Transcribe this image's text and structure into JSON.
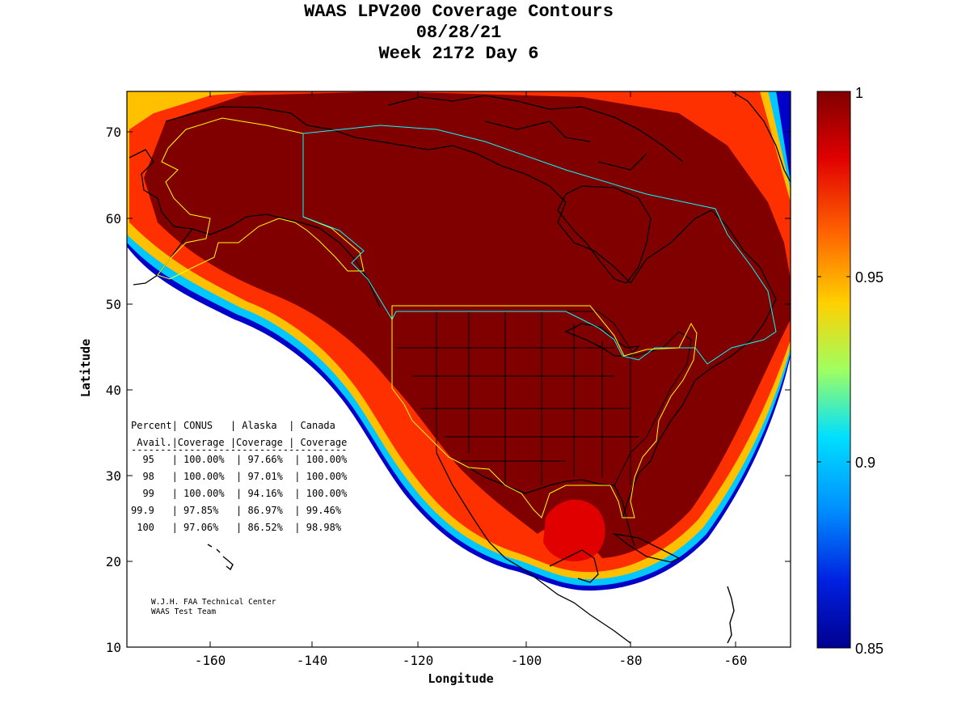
{
  "title": {
    "line1": "WAAS LPV200 Coverage Contours",
    "line2": "08/28/21",
    "line3": "Week 2172 Day 6"
  },
  "axes": {
    "xlabel": "Longitude",
    "ylabel": "Latitude",
    "xticks": [
      "-160",
      "-140",
      "-120",
      "-100",
      "-80",
      "-60"
    ],
    "yticks": [
      "70",
      "60",
      "50",
      "40",
      "30",
      "20",
      "10"
    ]
  },
  "colorbar": {
    "labels": [
      "1",
      "0.95",
      "0.9",
      "0.85"
    ],
    "colormap": [
      "#7f0000",
      "#ff0000",
      "#ff8000",
      "#ffff00",
      "#00ffff",
      "#0080ff",
      "#00008f"
    ]
  },
  "table": {
    "header1": "Percent| CONUS   | Alaska  | Canada",
    "header2": " Avail.|Coverage |Coverage | Coverage",
    "separator": "-------------------------------------",
    "rows": [
      "  95   | 100.00%  | 97.66%  | 100.00%",
      "  98   | 100.00%  | 97.01%  | 100.00%",
      "  99   | 100.00%  | 94.16%  | 100.00%",
      "99.9   | 97.85%   | 86.97%  | 99.46%",
      " 100   | 97.06%   | 86.52%  | 98.98%"
    ]
  },
  "credit": {
    "line1": "W.J.H. FAA Technical Center",
    "line2": "WAAS Test Team"
  },
  "chart_data": {
    "type": "heatmap",
    "title": "WAAS LPV200 Coverage Contours",
    "subtitle": "08/28/21 / Week 2172 Day 6",
    "xlabel": "Longitude",
    "ylabel": "Latitude",
    "xlim": [
      -175,
      -50
    ],
    "ylim": [
      10,
      75
    ],
    "color_range": [
      0.85,
      1
    ],
    "coverage_table": {
      "columns": [
        "Percent Avail.",
        "CONUS Coverage",
        "Alaska Coverage",
        "Canada Coverage"
      ],
      "rows": [
        [
          95,
          "100.00%",
          "97.66%",
          "100.00%"
        ],
        [
          98,
          "100.00%",
          "97.01%",
          "100.00%"
        ],
        [
          99,
          "100.00%",
          "94.16%",
          "100.00%"
        ],
        [
          99.9,
          "97.85%",
          "86.97%",
          "99.46%"
        ],
        [
          100,
          "97.06%",
          "86.52%",
          "98.98%"
        ]
      ]
    }
  }
}
